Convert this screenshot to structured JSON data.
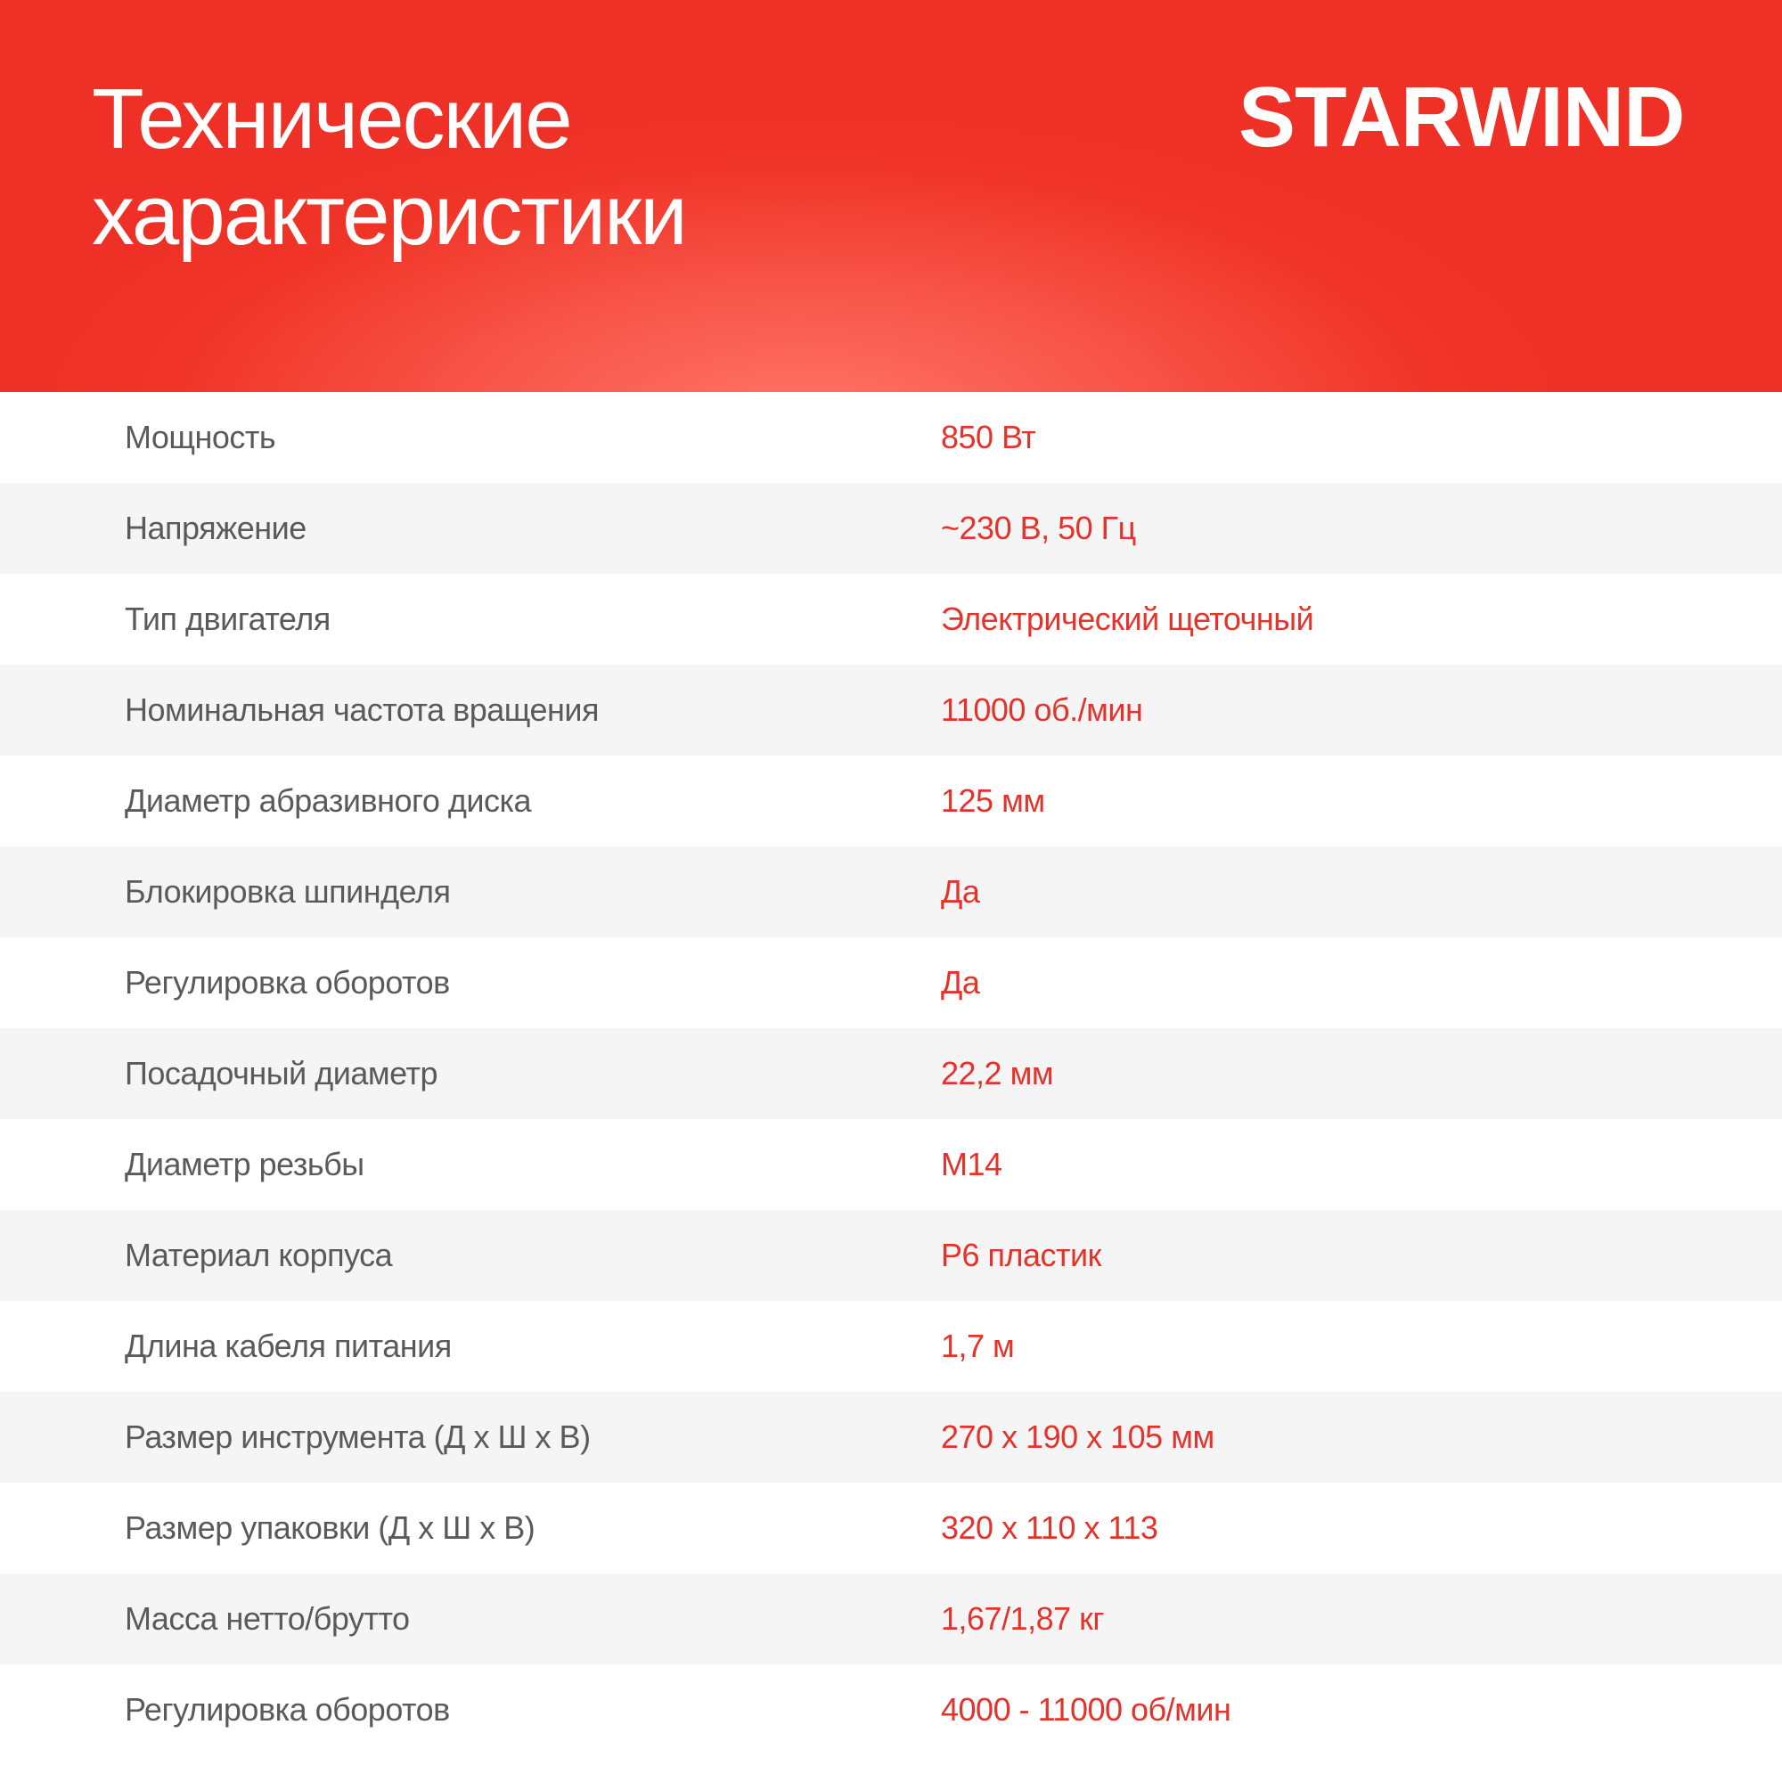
{
  "header": {
    "title_line1": "Технические",
    "title_line2": "характеристики",
    "logo": "STARWIND"
  },
  "colors": {
    "brand_red": "#ee3124",
    "value_red": "#e4332a",
    "label_gray": "#5a5a5a",
    "stripe": "#f5f5f5"
  },
  "specs": [
    {
      "label": "Мощность",
      "value": "850 Вт"
    },
    {
      "label": "Напряжение",
      "value": "~230 В, 50 Гц"
    },
    {
      "label": "Тип двигателя",
      "value": "Электрический щеточный"
    },
    {
      "label": "Номинальная частота вращения",
      "value": "11000 об./мин"
    },
    {
      "label": "Диаметр абразивного диска",
      "value": "125 мм"
    },
    {
      "label": "Блокировка шпинделя",
      "value": "Да"
    },
    {
      "label": "Регулировка оборотов",
      "value": "Да"
    },
    {
      "label": "Посадочный диаметр",
      "value": "22,2 мм"
    },
    {
      "label": "Диаметр резьбы",
      "value": "M14"
    },
    {
      "label": "Материал корпуса",
      "value": "P6 пластик"
    },
    {
      "label": "Длина кабеля питания",
      "value": "1,7 м"
    },
    {
      "label": "Размер инструмента (Д х Ш х В)",
      "value": "270 х 190 х 105 мм"
    },
    {
      "label": "Размер упаковки (Д х Ш х В)",
      "value": "320 х 110 х 113"
    },
    {
      "label": "Масса нетто/брутто",
      "value": "1,67/1,87 кг"
    },
    {
      "label": "Регулировка оборотов",
      "value": "4000 - 11000 об/мин"
    }
  ]
}
